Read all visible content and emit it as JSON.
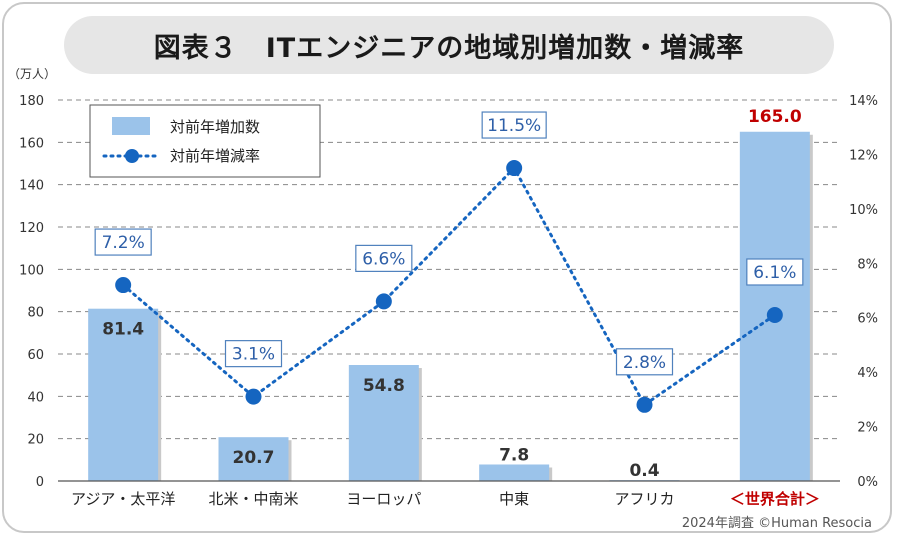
{
  "chart_data": {
    "type": "bar+line",
    "title": "図表３　ITエンジニアの地域別増加数・増減率",
    "y_left_unit": "（万人）",
    "y_left_ticks": [
      "0",
      "20",
      "40",
      "60",
      "80",
      "100",
      "120",
      "140",
      "160",
      "180"
    ],
    "y_left_range": [
      0,
      180
    ],
    "y_right_ticks": [
      "0%",
      "2%",
      "4%",
      "6%",
      "8%",
      "10%",
      "12%",
      "14%"
    ],
    "y_right_range": [
      0,
      14
    ],
    "categories": [
      "アジア・太平洋",
      "北米・中南米",
      "ヨーロッパ",
      "中東",
      "アフリカ",
      "＜世界合計＞"
    ],
    "series": [
      {
        "name": "対前年増加数",
        "kind": "bar",
        "axis": "left",
        "values": [
          81.4,
          20.7,
          54.8,
          7.8,
          0.4,
          165.0
        ],
        "labels": [
          "81.4",
          "20.7",
          "54.8",
          "7.8",
          "0.4",
          "165.0"
        ]
      },
      {
        "name": "対前年増減率",
        "kind": "line",
        "axis": "right",
        "values": [
          7.2,
          3.1,
          6.6,
          11.5,
          2.8,
          6.1
        ],
        "labels": [
          "7.2%",
          "3.1%",
          "6.6%",
          "11.5%",
          "2.8%",
          "6.1%"
        ]
      }
    ],
    "grid": true,
    "legend": "top-left",
    "colors": {
      "bar": "#9bc3ea",
      "line": "#1565c0",
      "total_label": "#c00000",
      "label_text": "#2e5fa8",
      "grid": "#888888"
    }
  },
  "source_note": "2024年調査 ©Human Resocia"
}
